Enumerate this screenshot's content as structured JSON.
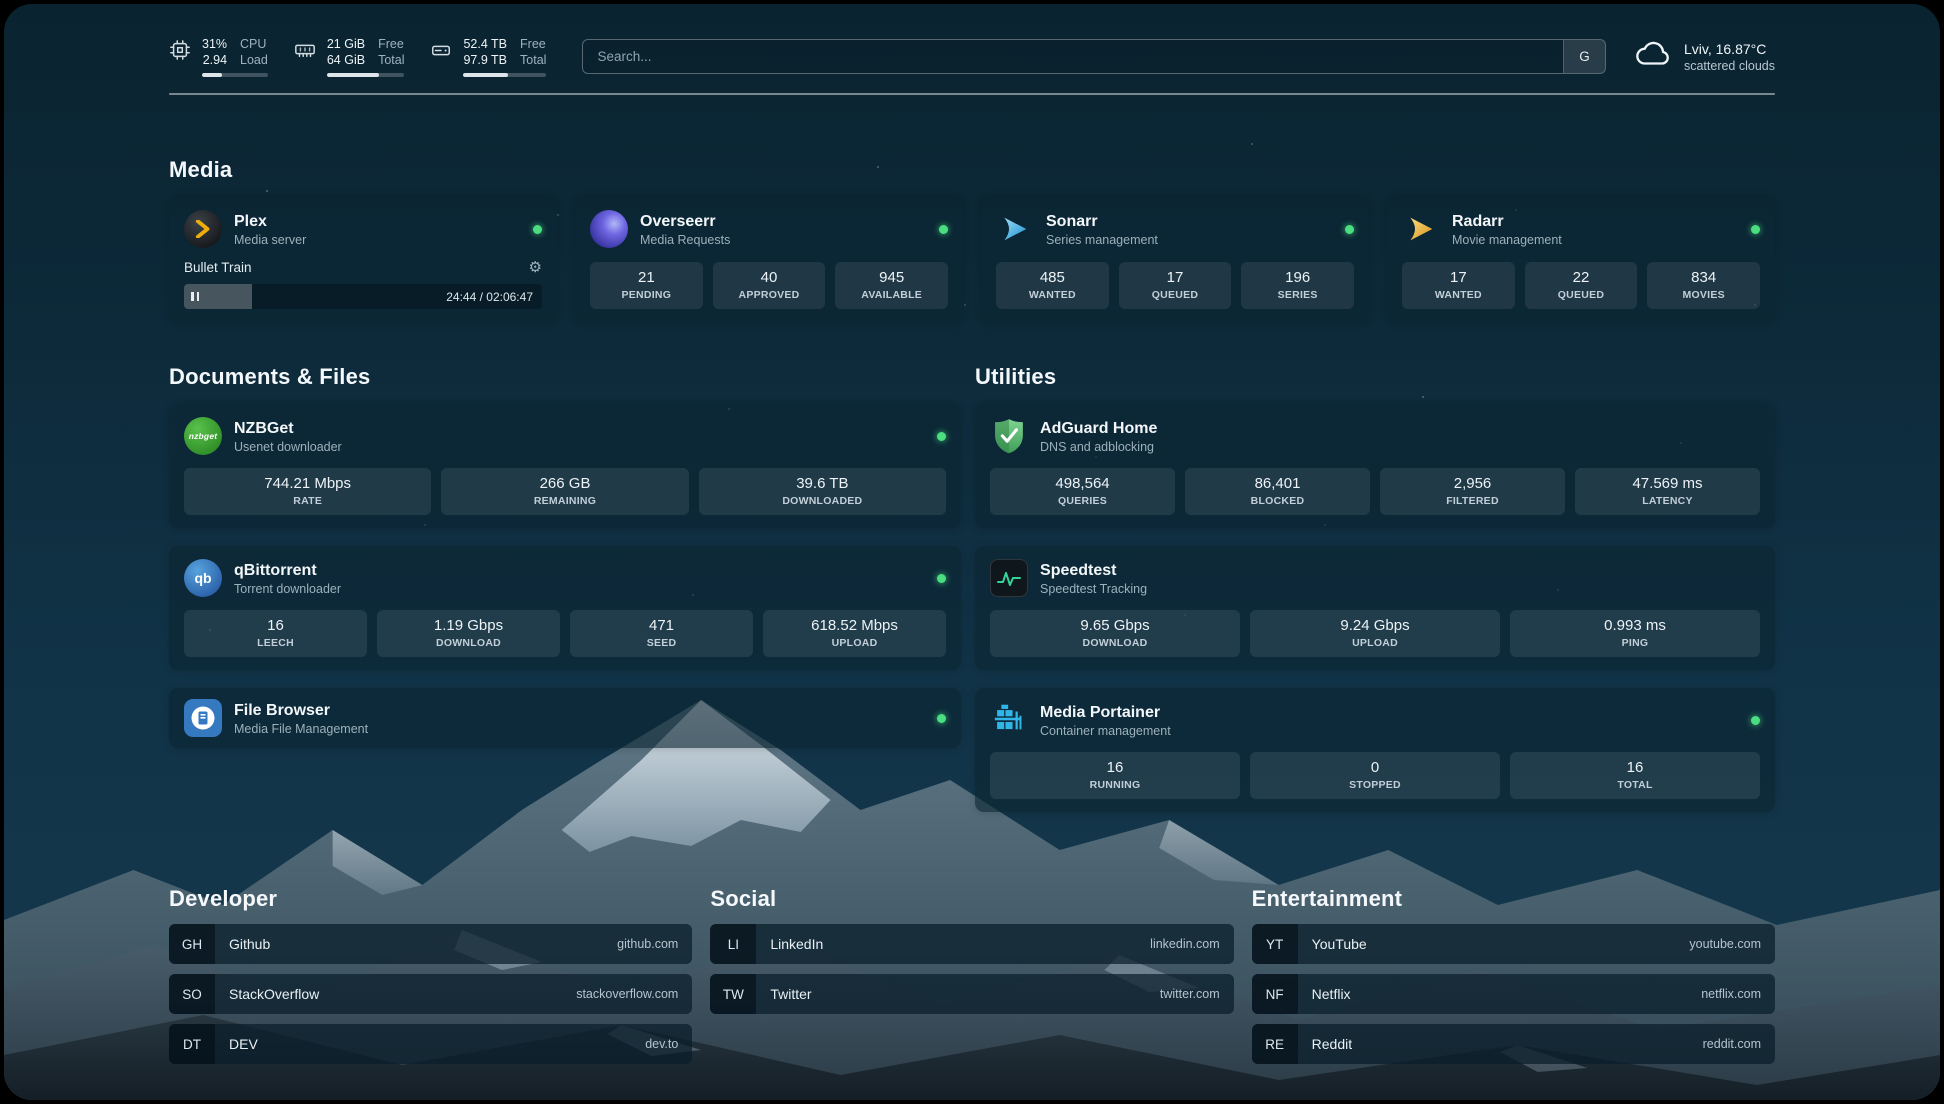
{
  "colors": {
    "status_online": "#4ade80",
    "background_teal": "#113347",
    "card_background": "#0b2532",
    "speedtest_accent": "#34d399",
    "plex_gold": "#eead0c",
    "sonarr_blue": "#35c5f4",
    "radarr_gold": "#e8a62a",
    "portainer_blue": "#2fb5e8",
    "adguard_green": "#4c9e5f"
  },
  "topbar": {
    "cpu": {
      "value_top": "31%",
      "value_bottom": "2.94",
      "label_top": "CPU",
      "label_bottom": "Load",
      "percent": 31
    },
    "ram": {
      "value_top": "21 GiB",
      "value_bottom": "64 GiB",
      "label_top": "Free",
      "label_bottom": "Total",
      "percent": 67
    },
    "disk": {
      "value_top": "52.4 TB",
      "value_bottom": "97.9 TB",
      "label_top": "Free",
      "label_bottom": "Total",
      "percent": 54
    },
    "search": {
      "placeholder": "Search...",
      "button_label": "G"
    },
    "weather": {
      "location": "Lviv, 16.87°C",
      "condition": "scattered clouds"
    }
  },
  "media": {
    "header": "Media",
    "plex": {
      "title": "Plex",
      "subtitle": "Media server",
      "now_playing": "Bullet Train",
      "time": "24:44 / 02:06:47",
      "progress_percent": 19
    },
    "overseerr": {
      "title": "Overseerr",
      "subtitle": "Media Requests",
      "stats": [
        {
          "value": "21",
          "label": "PENDING"
        },
        {
          "value": "40",
          "label": "APPROVED"
        },
        {
          "value": "945",
          "label": "AVAILABLE"
        }
      ]
    },
    "sonarr": {
      "title": "Sonarr",
      "subtitle": "Series management",
      "stats": [
        {
          "value": "485",
          "label": "WANTED"
        },
        {
          "value": "17",
          "label": "QUEUED"
        },
        {
          "value": "196",
          "label": "SERIES"
        }
      ]
    },
    "radarr": {
      "title": "Radarr",
      "subtitle": "Movie management",
      "stats": [
        {
          "value": "17",
          "label": "WANTED"
        },
        {
          "value": "22",
          "label": "QUEUED"
        },
        {
          "value": "834",
          "label": "MOVIES"
        }
      ]
    }
  },
  "documents": {
    "header": "Documents & Files",
    "nzbget": {
      "title": "NZBGet",
      "subtitle": "Usenet downloader",
      "stats": [
        {
          "value": "744.21 Mbps",
          "label": "RATE"
        },
        {
          "value": "266 GB",
          "label": "REMAINING"
        },
        {
          "value": "39.6 TB",
          "label": "DOWNLOADED"
        }
      ]
    },
    "qbittorrent": {
      "title": "qBittorrent",
      "subtitle": "Torrent downloader",
      "stats": [
        {
          "value": "16",
          "label": "LEECH"
        },
        {
          "value": "1.19 Gbps",
          "label": "DOWNLOAD"
        },
        {
          "value": "471",
          "label": "SEED"
        },
        {
          "value": "618.52 Mbps",
          "label": "UPLOAD"
        }
      ]
    },
    "filebrowser": {
      "title": "File Browser",
      "subtitle": "Media File Management"
    }
  },
  "utilities": {
    "header": "Utilities",
    "adguard": {
      "title": "AdGuard Home",
      "subtitle": "DNS and adblocking",
      "stats": [
        {
          "value": "498,564",
          "label": "QUERIES"
        },
        {
          "value": "86,401",
          "label": "BLOCKED"
        },
        {
          "value": "2,956",
          "label": "FILTERED"
        },
        {
          "value": "47.569 ms",
          "label": "LATENCY"
        }
      ]
    },
    "speedtest": {
      "title": "Speedtest",
      "subtitle": "Speedtest Tracking",
      "stats": [
        {
          "value": "9.65 Gbps",
          "label": "DOWNLOAD"
        },
        {
          "value": "9.24 Gbps",
          "label": "UPLOAD"
        },
        {
          "value": "0.993 ms",
          "label": "PING"
        }
      ]
    },
    "portainer": {
      "title": "Media Portainer",
      "subtitle": "Container management",
      "stats": [
        {
          "value": "16",
          "label": "RUNNING"
        },
        {
          "value": "0",
          "label": "STOPPED"
        },
        {
          "value": "16",
          "label": "TOTAL"
        }
      ]
    }
  },
  "bookmarks": {
    "developer": {
      "header": "Developer",
      "items": [
        {
          "abbr": "GH",
          "name": "Github",
          "url": "github.com"
        },
        {
          "abbr": "SO",
          "name": "StackOverflow",
          "url": "stackoverflow.com"
        },
        {
          "abbr": "DT",
          "name": "DEV",
          "url": "dev.to"
        }
      ]
    },
    "social": {
      "header": "Social",
      "items": [
        {
          "abbr": "LI",
          "name": "LinkedIn",
          "url": "linkedin.com"
        },
        {
          "abbr": "TW",
          "name": "Twitter",
          "url": "twitter.com"
        }
      ]
    },
    "entertainment": {
      "header": "Entertainment",
      "items": [
        {
          "abbr": "YT",
          "name": "YouTube",
          "url": "youtube.com"
        },
        {
          "abbr": "NF",
          "name": "Netflix",
          "url": "netflix.com"
        },
        {
          "abbr": "RE",
          "name": "Reddit",
          "url": "reddit.com"
        }
      ]
    }
  },
  "icons": {
    "cpu": "chip-icon",
    "memory": "ram-icon",
    "disk": "hard-drive-icon",
    "weather": "cloud-icon",
    "plex": "gold-chevron-circle",
    "overseerr": "purple-swirl-circle",
    "sonarr": "blue-play-swoosh",
    "radarr": "gold-play-swoosh",
    "nzbget_text": "nzbget",
    "qbittorrent_text": "qb",
    "filebrowser": "blue-file-circle",
    "adguard": "green-shield-check",
    "speedtest": "green-waveform",
    "portainer": "blue-crane-containers"
  }
}
